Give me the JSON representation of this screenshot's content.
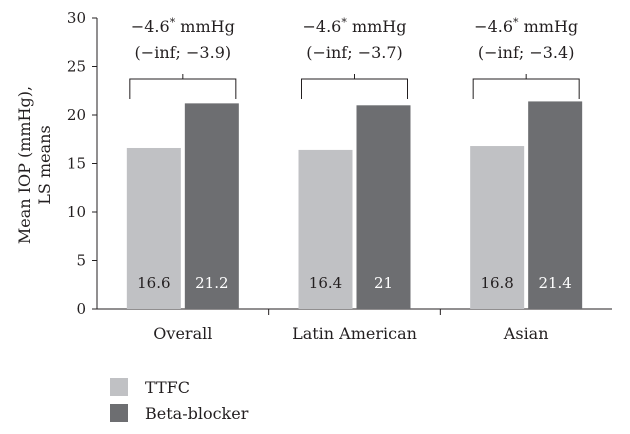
{
  "chart_data": {
    "type": "bar",
    "title": "",
    "ylabel_lines": [
      "Mean IOP (mmHg),",
      "LS means"
    ],
    "xlabel": "",
    "ylim": [
      0,
      30
    ],
    "yticks": [
      0,
      5,
      10,
      15,
      20,
      25,
      30
    ],
    "grid": false,
    "legend_position": "bottom-left",
    "categories": [
      "Overall",
      "Latin American",
      "Asian"
    ],
    "series": [
      {
        "name": "TTFC",
        "color": "#c0c1c4",
        "values": [
          16.6,
          16.4,
          16.8
        ],
        "labels": [
          "16.6",
          "16.4",
          "16.8"
        ]
      },
      {
        "name": "Beta-blocker",
        "color": "#6d6e71",
        "values": [
          21.2,
          21,
          21.4
        ],
        "labels": [
          "21.2",
          "21",
          "21.4"
        ]
      }
    ],
    "annotations": [
      {
        "line1_main": "−4.6",
        "line1_sup": "*",
        "line1_unit": " mmHg",
        "line2": "(−inf; −3.9)"
      },
      {
        "line1_main": "−4.6",
        "line1_sup": "*",
        "line1_unit": " mmHg",
        "line2": "(−inf; −3.7)"
      },
      {
        "line1_main": "−4.6",
        "line1_sup": "*",
        "line1_unit": " mmHg",
        "line2": "(−inf; −3.4)"
      }
    ]
  }
}
